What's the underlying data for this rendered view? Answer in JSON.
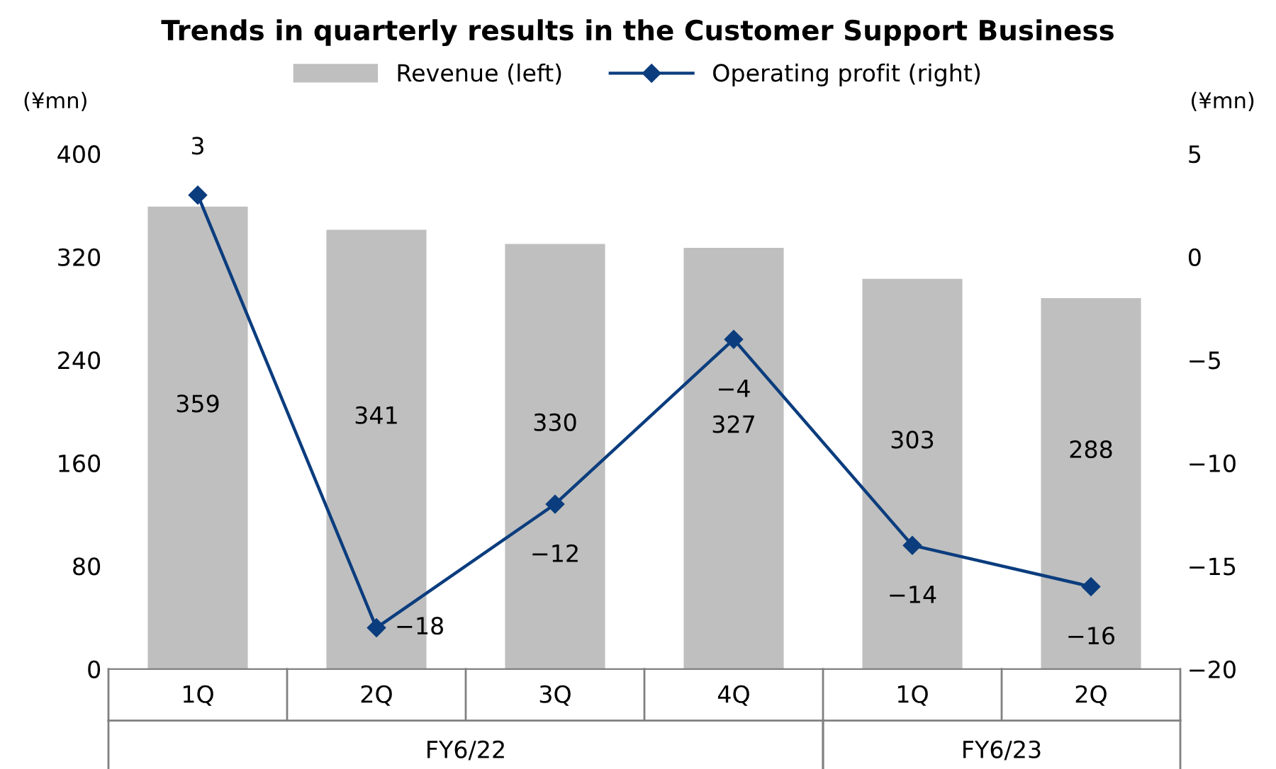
{
  "chart_data": {
    "type": "bar",
    "title": "Trends in quarterly results in the Customer Support Business",
    "categories": [
      "1Q",
      "2Q",
      "3Q",
      "4Q",
      "1Q",
      "2Q"
    ],
    "series": [
      {
        "name": "Revenue (left)",
        "color": "#bfbfbf",
        "values": [
          359,
          341,
          330,
          327,
          303,
          288
        ],
        "value_labels": [
          "359",
          "341",
          "330",
          "327",
          "303",
          "288"
        ]
      },
      {
        "name": "Operating profit (right)",
        "type": "line",
        "axis": "y2",
        "color": "#0b3d7e",
        "marker": "diamond",
        "line_style": "solid",
        "values": [
          3,
          -18,
          -12,
          -4,
          -14,
          -16
        ],
        "value_labels": [
          "3",
          "−18",
          "−12",
          "−4",
          "−14",
          "−16"
        ]
      }
    ],
    "ylabel": "(¥mn)",
    "y2label": "(¥mn)",
    "ylim": [
      0,
      400
    ],
    "yticks": [
      0,
      80,
      160,
      240,
      320,
      400
    ],
    "y2lim": [
      -20,
      5
    ],
    "y2ticks": [
      {
        "value": -20,
        "label": "−20"
      },
      {
        "value": -15,
        "label": "−15"
      },
      {
        "value": -10,
        "label": "−10"
      },
      {
        "value": -5,
        "label": "−5"
      },
      0,
      5
    ],
    "annotations": [
      "FY6/22",
      "FY6/23"
    ],
    "grid": false,
    "legend": "top"
  }
}
